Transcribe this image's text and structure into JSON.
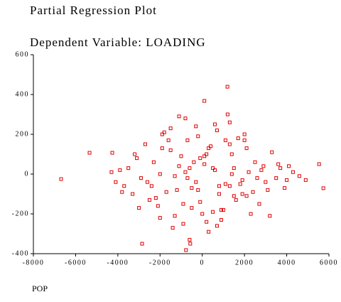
{
  "chart_data": {
    "type": "scatter",
    "title": "Partial Regression Plot",
    "subtitle": "Dependent Variable: LOADING",
    "x_label": "POP",
    "color": "#e00000",
    "xlim": [
      -8000,
      6000
    ],
    "xticks": [
      -8000,
      -6000,
      -4000,
      -2000,
      0,
      2000,
      4000,
      6000
    ],
    "ylim": [
      -400,
      600
    ],
    "yticks": [
      -400,
      -200,
      0,
      200,
      400,
      600
    ],
    "x": [
      -6687,
      -5340,
      -4263,
      1192,
      5737,
      5535,
      -771,
      -569,
      -2850,
      100,
      -4300,
      -4100,
      -3900,
      -3700,
      -3500,
      -3300,
      -3100,
      -2900,
      -2700,
      -2500,
      -2300,
      -2100,
      -1900,
      -1700,
      -1500,
      -1300,
      -1100,
      -900,
      -700,
      -500,
      -300,
      -100,
      100,
      300,
      500,
      700,
      900,
      1100,
      1300,
      1500,
      1700,
      1900,
      2100,
      2300,
      2500,
      2700,
      2900,
      3100,
      3300,
      3500,
      3700,
      3900,
      4100,
      4300,
      4600,
      4900,
      -3800,
      -3200,
      -2600,
      -2000,
      -1600,
      -1200,
      -800,
      -400,
      0,
      400,
      800,
      1200,
      1600,
      2000,
      2400,
      2800,
      3200,
      3600,
      4000,
      -2200,
      -1800,
      -1400,
      -1000,
      -600,
      -200,
      200,
      600,
      1000,
      1400,
      1800,
      2200,
      -1500,
      -900,
      -300,
      300,
      900,
      1500,
      2100,
      -1100,
      -500,
      100,
      700,
      1300,
      -700,
      -100,
      500,
      1100,
      -2400,
      2600,
      -3000,
      3000,
      -1900,
      1900,
      -1300,
      1300,
      -600,
      600,
      -200,
      200,
      2000,
      -2000,
      800,
      -800,
      1400
    ],
    "y": [
      -25,
      107,
      107,
      439,
      -71,
      50,
      -382,
      -350,
      -350,
      368,
      10,
      -40,
      20,
      -60,
      30,
      -100,
      80,
      -20,
      150,
      -130,
      60,
      -160,
      200,
      -90,
      120,
      -210,
      40,
      -250,
      170,
      -70,
      240,
      -140,
      90,
      -290,
      30,
      220,
      -180,
      -50,
      260,
      -110,
      180,
      -30,
      130,
      -200,
      60,
      -150,
      40,
      -80,
      110,
      -20,
      30,
      -70,
      40,
      10,
      -10,
      -30,
      -90,
      100,
      -40,
      -220,
      170,
      -80,
      280,
      60,
      -200,
      140,
      -60,
      300,
      -130,
      200,
      -90,
      20,
      -210,
      50,
      -30,
      -120,
      210,
      -270,
      90,
      -330,
      190,
      -240,
      250,
      -180,
      100,
      -50,
      10,
      230,
      -150,
      -40,
      130,
      -230,
      30,
      -110,
      290,
      -170,
      50,
      -260,
      150,
      -20,
      80,
      -190,
      170,
      -60,
      -20,
      -170,
      -40,
      130,
      -100,
      -10,
      -60,
      30,
      20,
      -80,
      100,
      170,
      0,
      -100,
      10,
      0
    ]
  }
}
